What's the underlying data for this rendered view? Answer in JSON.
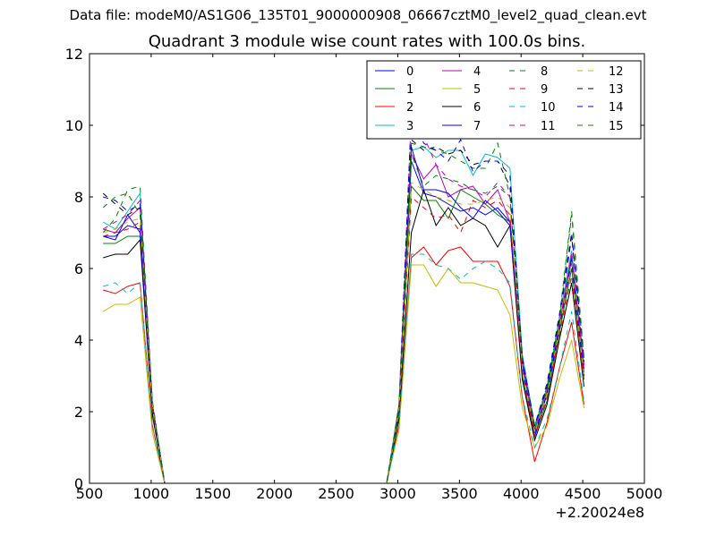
{
  "header_text": "Data file: modeM0/AS1G06_135T01_9000000908_06667cztM0_level2_quad_clean.evt",
  "chart_data": {
    "type": "line",
    "title": "Quadrant 3 module wise count rates with 100.0s bins.",
    "xlabel": "",
    "ylabel": "",
    "x_offset_label": "+2.20024e8",
    "xlim": [
      500,
      5000
    ],
    "ylim": [
      0,
      12
    ],
    "xticks": [
      "500",
      "1000",
      "1500",
      "2000",
      "2500",
      "3000",
      "3500",
      "4000",
      "4500",
      "5000"
    ],
    "yticks": [
      "0",
      "2",
      "4",
      "6",
      "8",
      "10",
      "12"
    ],
    "grid": false,
    "legend_position": "top-right",
    "x": [
      610,
      710,
      810,
      910,
      1010,
      1110,
      1210,
      1310,
      1410,
      1510,
      1610,
      1710,
      1810,
      1910,
      2010,
      2110,
      2210,
      2310,
      2410,
      2510,
      2610,
      2710,
      2810,
      2910,
      3010,
      3110,
      3210,
      3310,
      3410,
      3510,
      3610,
      3710,
      3810,
      3910,
      4010,
      4110,
      4210,
      4310,
      4410,
      4510
    ],
    "series": [
      {
        "name": "0",
        "color": "#0000ff",
        "style": "solid",
        "values": [
          6.9,
          6.9,
          7.2,
          7.1,
          2.2,
          0,
          0,
          0,
          0,
          0,
          0,
          0,
          0,
          0,
          0,
          0,
          0,
          0,
          0,
          0,
          0,
          0,
          0,
          0,
          2.0,
          9.0,
          8.1,
          8.0,
          7.8,
          7.6,
          7.7,
          7.5,
          7.7,
          7.3,
          3.3,
          1.4,
          2.5,
          4.3,
          6.3,
          3.1
        ]
      },
      {
        "name": "1",
        "color": "#008000",
        "style": "solid",
        "values": [
          6.7,
          6.7,
          6.9,
          6.9,
          2.0,
          0,
          0,
          0,
          0,
          0,
          0,
          0,
          0,
          0,
          0,
          0,
          0,
          0,
          0,
          0,
          0,
          0,
          0,
          0,
          1.9,
          8.3,
          7.9,
          7.9,
          7.4,
          8.2,
          8.0,
          7.8,
          7.5,
          7.3,
          3.0,
          1.3,
          2.3,
          4.2,
          6.0,
          2.9
        ]
      },
      {
        "name": "2",
        "color": "#ff0000",
        "style": "solid",
        "values": [
          5.4,
          5.3,
          5.5,
          5.6,
          1.6,
          0,
          0,
          0,
          0,
          0,
          0,
          0,
          0,
          0,
          0,
          0,
          0,
          0,
          0,
          0,
          0,
          0,
          0,
          0,
          1.6,
          6.3,
          6.6,
          6.1,
          6.5,
          6.6,
          6.2,
          6.2,
          6.2,
          5.5,
          2.4,
          0.6,
          1.7,
          3.2,
          4.5,
          2.2
        ]
      },
      {
        "name": "3",
        "color": "#00bfbf",
        "style": "solid",
        "values": [
          7.3,
          7.1,
          7.6,
          8.1,
          2.2,
          0,
          0,
          0,
          0,
          0,
          0,
          0,
          0,
          0,
          0,
          0,
          0,
          0,
          0,
          0,
          0,
          0,
          0,
          0,
          2.1,
          9.3,
          9.4,
          9.1,
          9.3,
          9.3,
          8.6,
          9.2,
          9.1,
          8.8,
          3.6,
          1.6,
          2.7,
          4.6,
          6.5,
          3.3
        ]
      },
      {
        "name": "4",
        "color": "#bf00bf",
        "style": "solid",
        "values": [
          7.1,
          7.0,
          7.4,
          7.7,
          2.1,
          0,
          0,
          0,
          0,
          0,
          0,
          0,
          0,
          0,
          0,
          0,
          0,
          0,
          0,
          0,
          0,
          0,
          0,
          0,
          2.0,
          9.2,
          8.5,
          8.9,
          8.0,
          8.2,
          8.3,
          7.8,
          8.2,
          7.3,
          3.4,
          1.5,
          2.6,
          4.4,
          6.4,
          3.2
        ]
      },
      {
        "name": "5",
        "color": "#bfbf00",
        "style": "solid",
        "values": [
          4.8,
          5.0,
          5.0,
          5.2,
          1.4,
          0,
          0,
          0,
          0,
          0,
          0,
          0,
          0,
          0,
          0,
          0,
          0,
          0,
          0,
          0,
          0,
          0,
          0,
          0,
          1.5,
          6.1,
          6.1,
          5.5,
          6.0,
          5.6,
          5.6,
          5.5,
          5.4,
          4.7,
          2.1,
          1.0,
          1.6,
          2.9,
          4.0,
          2.1
        ]
      },
      {
        "name": "6",
        "color": "#000000",
        "style": "solid",
        "values": [
          6.3,
          6.4,
          6.4,
          6.8,
          1.9,
          0,
          0,
          0,
          0,
          0,
          0,
          0,
          0,
          0,
          0,
          0,
          0,
          0,
          0,
          0,
          0,
          0,
          0,
          0,
          1.8,
          7.0,
          8.2,
          7.2,
          7.7,
          7.2,
          7.4,
          7.2,
          6.6,
          7.2,
          2.9,
          1.2,
          2.2,
          4.0,
          5.6,
          2.7
        ]
      },
      {
        "name": "7",
        "color": "#0000ff",
        "style": "solid",
        "values": [
          6.9,
          6.8,
          7.5,
          7.0,
          2.1,
          0,
          0,
          0,
          0,
          0,
          0,
          0,
          0,
          0,
          0,
          0,
          0,
          0,
          0,
          0,
          0,
          0,
          0,
          0,
          2.0,
          9.4,
          8.2,
          8.2,
          8.1,
          7.7,
          7.4,
          7.9,
          7.6,
          7.2,
          3.3,
          1.3,
          2.5,
          4.3,
          6.2,
          3.0
        ]
      },
      {
        "name": "8",
        "color": "#008000",
        "style": "dashed",
        "values": [
          7.0,
          7.4,
          8.2,
          8.3,
          2.3,
          0,
          0,
          0,
          0,
          0,
          0,
          0,
          0,
          0,
          0,
          0,
          0,
          0,
          0,
          0,
          0,
          0,
          0,
          0,
          2.2,
          9.5,
          9.4,
          9.3,
          9.2,
          9.0,
          8.8,
          8.8,
          9.5,
          8.0,
          3.5,
          1.6,
          2.7,
          4.6,
          7.6,
          3.5
        ]
      },
      {
        "name": "9",
        "color": "#ff0000",
        "style": "dashed",
        "values": [
          6.9,
          7.0,
          7.1,
          7.3,
          2.0,
          0,
          0,
          0,
          0,
          0,
          0,
          0,
          0,
          0,
          0,
          0,
          0,
          0,
          0,
          0,
          0,
          0,
          0,
          0,
          1.9,
          8.0,
          7.7,
          7.4,
          7.5,
          7.0,
          7.9,
          7.7,
          7.9,
          7.5,
          3.1,
          1.3,
          2.4,
          4.1,
          5.8,
          2.8
        ]
      },
      {
        "name": "10",
        "color": "#00bfbf",
        "style": "dashed",
        "values": [
          5.5,
          5.6,
          5.3,
          5.6,
          1.6,
          0,
          0,
          0,
          0,
          0,
          0,
          0,
          0,
          0,
          0,
          0,
          0,
          0,
          0,
          0,
          0,
          0,
          0,
          0,
          1.6,
          6.4,
          6.4,
          6.1,
          6.0,
          5.7,
          6.0,
          6.2,
          6.0,
          5.6,
          2.4,
          1.0,
          1.8,
          3.2,
          4.8,
          2.3
        ]
      },
      {
        "name": "11",
        "color": "#bf00bf",
        "style": "dashed",
        "values": [
          7.1,
          7.3,
          7.5,
          7.9,
          2.2,
          0,
          0,
          0,
          0,
          0,
          0,
          0,
          0,
          0,
          0,
          0,
          0,
          0,
          0,
          0,
          0,
          0,
          0,
          0,
          2.1,
          10.3,
          9.7,
          8.9,
          8.5,
          8.3,
          8.2,
          8.0,
          8.4,
          8.0,
          3.4,
          1.5,
          2.6,
          4.5,
          6.9,
          3.3
        ]
      },
      {
        "name": "12",
        "color": "#bfbf00",
        "style": "dashed",
        "values": [
          7.0,
          7.1,
          7.3,
          7.4,
          2.1,
          0,
          0,
          0,
          0,
          0,
          0,
          0,
          0,
          0,
          0,
          0,
          0,
          0,
          0,
          0,
          0,
          0,
          0,
          0,
          2.0,
          8.4,
          8.2,
          8.0,
          7.9,
          7.8,
          7.8,
          7.9,
          8.0,
          7.7,
          3.2,
          1.4,
          2.5,
          4.3,
          6.2,
          3.0
        ]
      },
      {
        "name": "13",
        "color": "#000000",
        "style": "dashed",
        "values": [
          8.1,
          7.8,
          7.5,
          7.7,
          2.2,
          0,
          0,
          0,
          0,
          0,
          0,
          0,
          0,
          0,
          0,
          0,
          0,
          0,
          0,
          0,
          0,
          0,
          0,
          0,
          2.1,
          9.6,
          9.3,
          9.4,
          9.2,
          9.3,
          8.9,
          9.0,
          9.0,
          8.3,
          3.5,
          1.6,
          2.7,
          4.6,
          6.9,
          3.4
        ]
      },
      {
        "name": "14",
        "color": "#0000ff",
        "style": "dashed",
        "values": [
          8.0,
          7.9,
          7.6,
          7.8,
          2.2,
          0,
          0,
          0,
          0,
          0,
          0,
          0,
          0,
          0,
          0,
          0,
          0,
          0,
          0,
          0,
          0,
          0,
          0,
          0,
          2.2,
          10.3,
          9.5,
          9.3,
          9.0,
          9.6,
          8.7,
          9.0,
          9.0,
          8.6,
          3.5,
          1.6,
          2.8,
          4.7,
          7.0,
          3.5
        ]
      },
      {
        "name": "15",
        "color": "#008000",
        "style": "dashed",
        "values": [
          7.7,
          8.0,
          8.1,
          7.5,
          2.2,
          0,
          0,
          0,
          0,
          0,
          0,
          0,
          0,
          0,
          0,
          0,
          0,
          0,
          0,
          0,
          0,
          0,
          0,
          0,
          2.1,
          9.2,
          8.3,
          8.6,
          8.5,
          8.4,
          8.2,
          8.1,
          8.3,
          8.0,
          3.4,
          1.5,
          2.6,
          4.5,
          7.5,
          3.4
        ]
      }
    ]
  }
}
